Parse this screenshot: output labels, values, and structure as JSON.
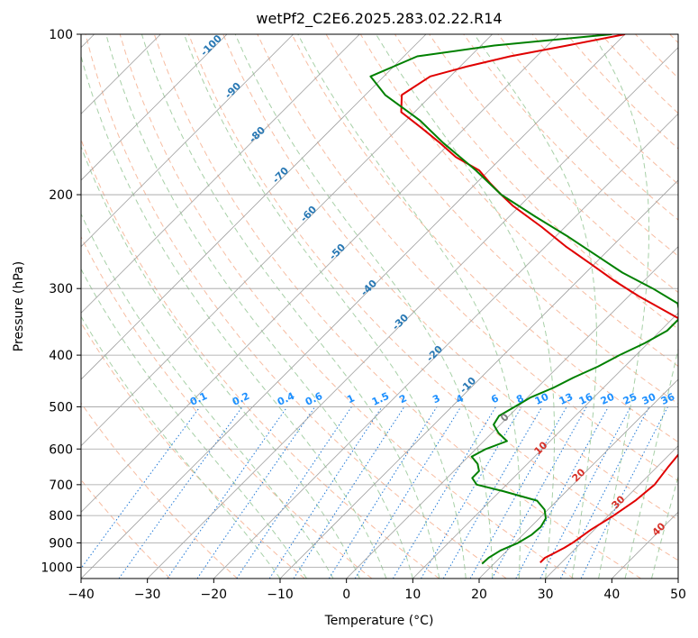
{
  "chart_data": {
    "type": "line",
    "title": "wetPf2_C2E6.2025.283.02.22.R14",
    "xlabel": "Temperature (°C)",
    "ylabel": "Pressure (hPa)",
    "xlim": [
      -40,
      50
    ],
    "ylim": [
      1050,
      100
    ],
    "y_scale": "log",
    "x_ticks": [
      -40,
      -30,
      -20,
      -10,
      0,
      10,
      20,
      30,
      40,
      50
    ],
    "y_ticks": [
      100,
      200,
      300,
      400,
      500,
      600,
      700,
      800,
      900,
      1000
    ],
    "grid": true,
    "colors": {
      "temperature": "#e00000",
      "dewpoint": "#008000",
      "isotherm": "#a0a0a0",
      "dry_adiabat": "#f4a582",
      "moist_adiabat": "#98c898",
      "mixing_ratio": "#1f78d6",
      "adiabat_label": "#d63027",
      "moist_label": "#2878b4",
      "mix_label": "#1e90ff",
      "zero_label": "#808080"
    },
    "series": [
      {
        "key": "temperature",
        "p": [
          980,
          960,
          940,
          920,
          900,
          850,
          800,
          750,
          700,
          650,
          600,
          550,
          500,
          470,
          450,
          430,
          400,
          370,
          340,
          310,
          290,
          270,
          250,
          230,
          210,
          200,
          190,
          180,
          170,
          160,
          150,
          140,
          130,
          120,
          115,
          110,
          105,
          100
        ],
        "t": [
          26.8,
          26.8,
          27.5,
          28.2,
          28.7,
          29.5,
          30.8,
          31.8,
          32.3,
          31.7,
          31.2,
          31.2,
          31.5,
          29.5,
          27.5,
          25.5,
          22.5,
          18.0,
          10.5,
          1.5,
          -4.5,
          -10.5,
          -17.0,
          -23.5,
          -31.0,
          -34.5,
          -38.0,
          -41.5,
          -47.0,
          -51.5,
          -56.5,
          -62.0,
          -64.5,
          -63.0,
          -59.0,
          -54.0,
          -47.0,
          -40.0
        ]
      },
      {
        "key": "dewpoint",
        "p": [
          985,
          960,
          930,
          900,
          870,
          840,
          810,
          780,
          750,
          720,
          700,
          680,
          660,
          640,
          620,
          600,
          580,
          560,
          540,
          520,
          500,
          480,
          460,
          440,
          420,
          400,
          380,
          360,
          340,
          320,
          300,
          280,
          260,
          240,
          220,
          200,
          180,
          160,
          145,
          130,
          120,
          110,
          105,
          100
        ],
        "t": [
          18.2,
          18.3,
          19.0,
          20.5,
          21.3,
          21.5,
          21.0,
          19.5,
          17.0,
          10.5,
          5.5,
          3.8,
          3.8,
          2.5,
          0.5,
          1.5,
          3.5,
          1.0,
          -1.0,
          -1.5,
          -0.5,
          0.5,
          2.5,
          4.0,
          6.0,
          7.5,
          9.5,
          11.0,
          11.0,
          8.5,
          2.5,
          -4.5,
          -11.0,
          -18.0,
          -26.0,
          -34.5,
          -42.0,
          -51.0,
          -58.0,
          -67.0,
          -72.0,
          -68.0,
          -58.0,
          -42.0
        ]
      }
    ],
    "moist_adiabat_labels": [
      "-100",
      "-90",
      "-80",
      "-70",
      "-60",
      "-50",
      "-40",
      "-30",
      "-20",
      "-10"
    ],
    "dry_adiabat_labels": [
      "0",
      "10",
      "20",
      "30",
      "40"
    ],
    "mixing_ratio_labels": [
      "0.1",
      "0.2",
      "0.4",
      "0.6",
      "1",
      "1.5",
      "2",
      "3",
      "4",
      "6",
      "8",
      "10",
      "13",
      "16",
      "20",
      "25",
      "30",
      "36"
    ]
  }
}
